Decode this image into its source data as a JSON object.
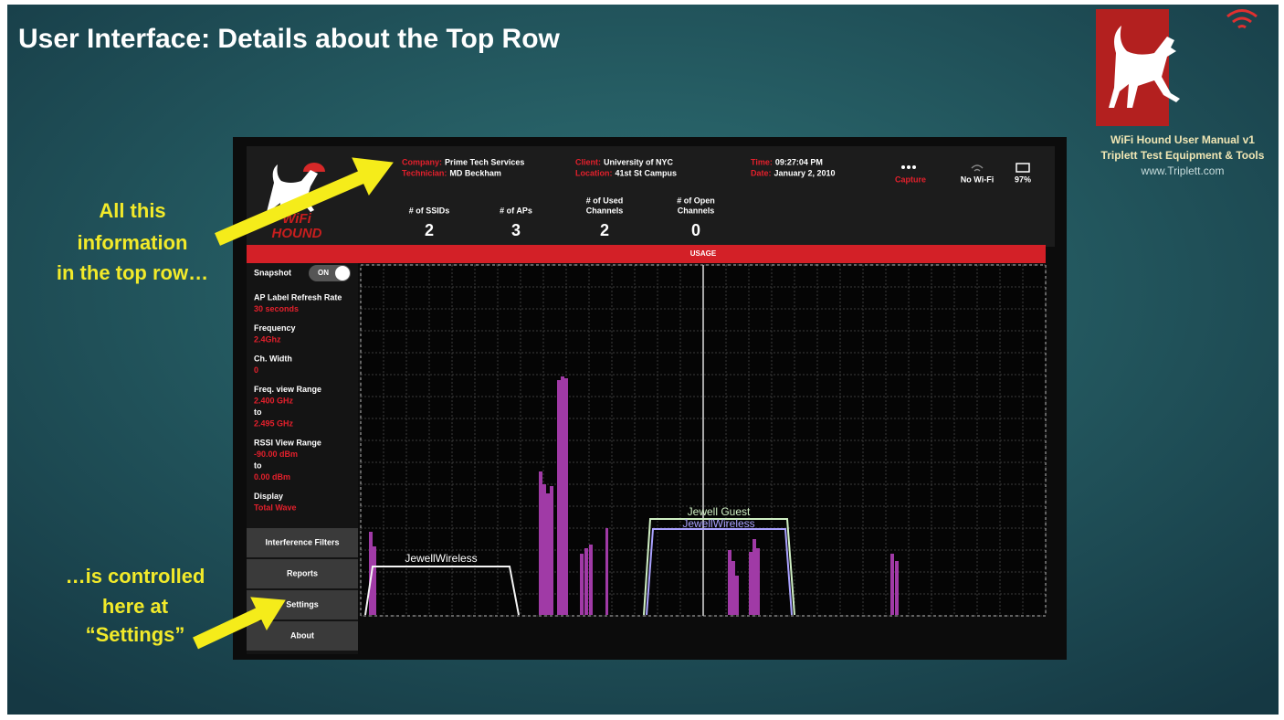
{
  "slide": {
    "title": "User Interface: Details about the Top Row",
    "logo_caption": [
      "WiFi Hound User Manual v1",
      "Triplett Test Equipment & Tools",
      "www.Triplett.com"
    ],
    "callouts": [
      {
        "lines": [
          "All this",
          "information",
          "in the top row…"
        ]
      },
      {
        "lines": [
          "…is controlled",
          "here at",
          "“Settings”"
        ]
      }
    ]
  },
  "device": {
    "logo_lines": [
      "WiFi",
      "HOUND"
    ],
    "info": [
      {
        "label": "Company:",
        "value": "Prime Tech Services"
      },
      {
        "label": "Technician:",
        "value": "MD Beckham"
      },
      {
        "label": "Client:",
        "value": "University of NYC"
      },
      {
        "label": "Location:",
        "value": "41st St Campus"
      },
      {
        "label": "Time:",
        "value": "09:27:04 PM"
      },
      {
        "label": "Date:",
        "value": "January 2, 2010"
      }
    ],
    "capture": "Capture",
    "wifi": "No Wi-Fi",
    "battery": "97%",
    "stats": [
      {
        "label": [
          "# of SSIDs"
        ],
        "value": 2
      },
      {
        "label": [
          "# of APs"
        ],
        "value": 3
      },
      {
        "label": [
          "# of Used",
          "Channels"
        ],
        "value": 2
      },
      {
        "label": [
          "# of Open",
          "Channels"
        ],
        "value": 0
      }
    ],
    "usage": "USAGE",
    "snapshot": {
      "label": "Snapshot",
      "toggle": "ON"
    },
    "settings": [
      {
        "label": "AP Label Refresh Rate",
        "values": [
          "30 seconds"
        ]
      },
      {
        "label": "Frequency",
        "values": [
          "2.4Ghz"
        ]
      },
      {
        "label": "Ch. Width",
        "values": [
          "0"
        ]
      },
      {
        "label": "Freq. view Range",
        "values": [
          "2.400 GHz",
          "to",
          "2.495 GHz"
        ]
      },
      {
        "label": "RSSI View Range",
        "values": [
          "-90.00 dBm",
          "to",
          "0.00 dBm"
        ]
      },
      {
        "label": "Display",
        "values": [
          "Total Wave"
        ]
      }
    ],
    "menu": [
      "Interference Filters",
      "Reports",
      "Settings",
      "About"
    ],
    "networks": [
      "JewellWireless",
      "Jewell Guest",
      "JewellWireless"
    ]
  }
}
